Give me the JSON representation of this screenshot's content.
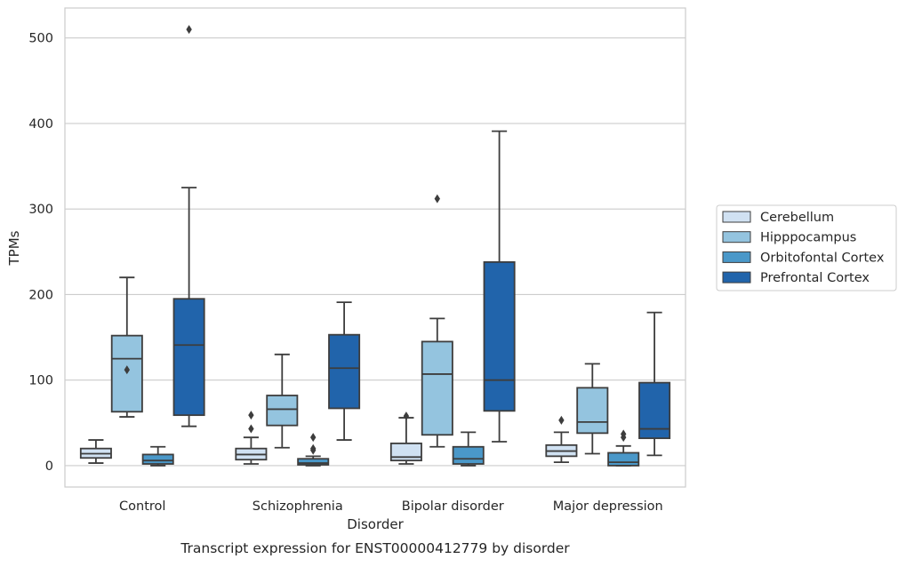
{
  "chart_data": {
    "type": "boxplot",
    "xlabel": "Disorder",
    "ylabel": "TPMs",
    "caption": "Transcript expression for ENST00000412779 by disorder",
    "categories": [
      "Control",
      "Schizophrenia",
      "Bipolar disorder",
      "Major depression"
    ],
    "ylim": [
      -25,
      535
    ],
    "yticks": [
      0,
      100,
      200,
      300,
      400,
      500
    ],
    "grid": "horizontal",
    "legend_position": "right",
    "series": [
      {
        "name": "Cerebellum",
        "color": "#d0e1f2",
        "boxes": [
          {
            "whislo": 3,
            "q1": 9,
            "med": 14,
            "q3": 20,
            "whishi": 30,
            "fliers": []
          },
          {
            "whislo": 2,
            "q1": 7,
            "med": 13,
            "q3": 20,
            "whishi": 33,
            "fliers": [
              43,
              59
            ]
          },
          {
            "whislo": 2,
            "q1": 6,
            "med": 10,
            "q3": 26,
            "whishi": 56,
            "fliers": [
              58
            ]
          },
          {
            "whislo": 4,
            "q1": 11,
            "med": 17,
            "q3": 24,
            "whishi": 39,
            "fliers": [
              53
            ]
          }
        ]
      },
      {
        "name": "Hipppocampus",
        "color": "#94c4df",
        "boxes": [
          {
            "whislo": 57,
            "q1": 63,
            "med": 125,
            "q3": 152,
            "whishi": 220,
            "fliers": [
              112
            ]
          },
          {
            "whislo": 21,
            "q1": 47,
            "med": 66,
            "q3": 82,
            "whishi": 130,
            "fliers": []
          },
          {
            "whislo": 22,
            "q1": 36,
            "med": 107,
            "q3": 145,
            "whishi": 172,
            "fliers": [
              312
            ]
          },
          {
            "whislo": 14,
            "q1": 38,
            "med": 51,
            "q3": 91,
            "whishi": 119,
            "fliers": []
          }
        ]
      },
      {
        "name": "Orbitofontal Cortex",
        "color": "#4a98c9",
        "boxes": [
          {
            "whislo": 0,
            "q1": 2,
            "med": 6,
            "q3": 13,
            "whishi": 22,
            "fliers": []
          },
          {
            "whislo": 0,
            "q1": 1,
            "med": 3,
            "q3": 8,
            "whishi": 11,
            "fliers": [
              18,
              20,
              33
            ]
          },
          {
            "whislo": 0,
            "q1": 2,
            "med": 8,
            "q3": 22,
            "whishi": 39,
            "fliers": []
          },
          {
            "whislo": 0,
            "q1": 0,
            "med": 4,
            "q3": 15,
            "whishi": 23,
            "fliers": [
              33,
              37
            ]
          }
        ]
      },
      {
        "name": "Prefrontal Cortex",
        "color": "#2164ab",
        "boxes": [
          {
            "whislo": 46,
            "q1": 59,
            "med": 141,
            "q3": 195,
            "whishi": 325,
            "fliers": [
              510
            ]
          },
          {
            "whislo": 30,
            "q1": 67,
            "med": 114,
            "q3": 153,
            "whishi": 191,
            "fliers": []
          },
          {
            "whislo": 28,
            "q1": 64,
            "med": 100,
            "q3": 238,
            "whishi": 391,
            "fliers": []
          },
          {
            "whislo": 12,
            "q1": 32,
            "med": 43,
            "q3": 97,
            "whishi": 179,
            "fliers": []
          }
        ]
      }
    ]
  }
}
